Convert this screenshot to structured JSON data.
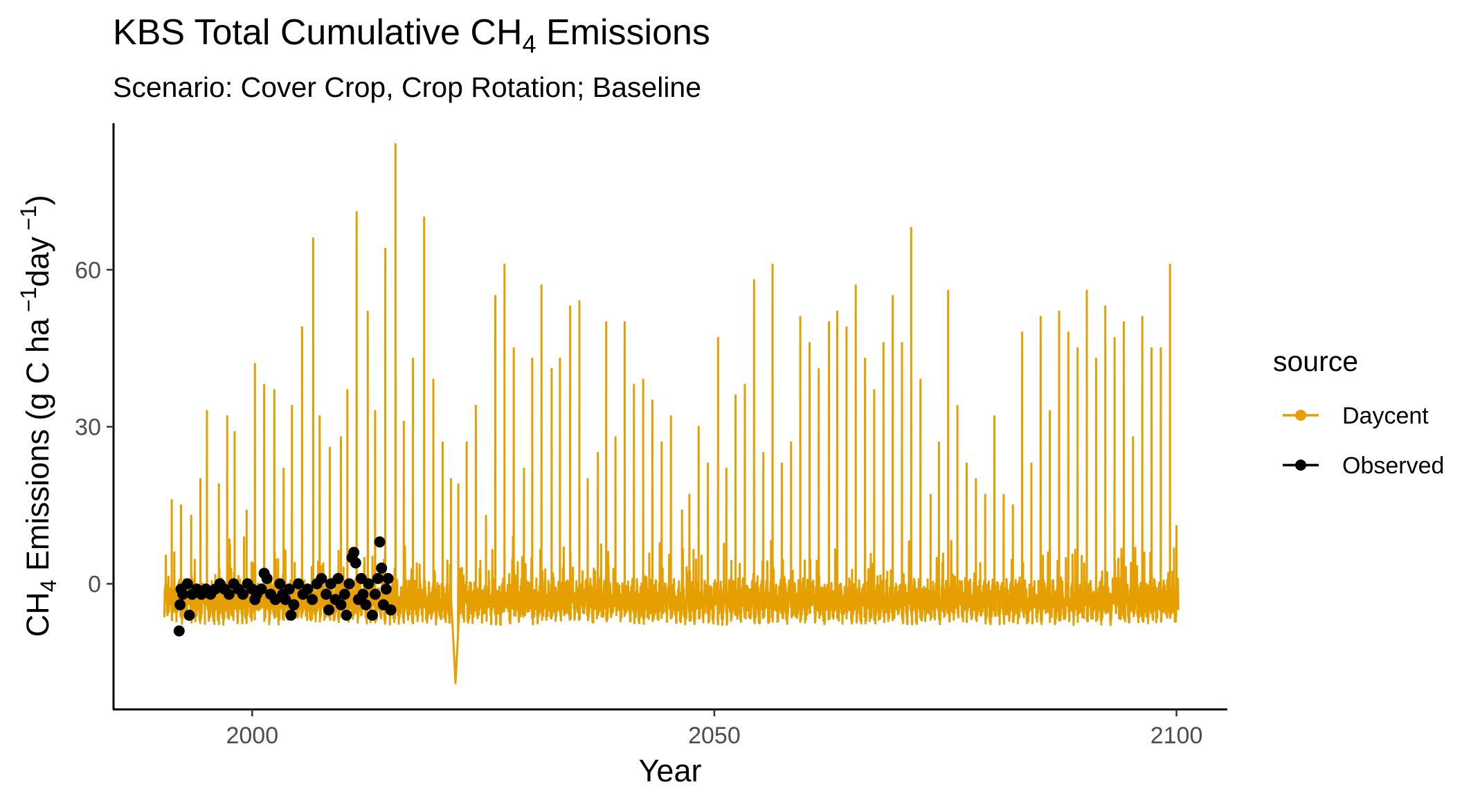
{
  "chart_data": {
    "type": "line",
    "title": {
      "main": "KBS Total Cumulative CH",
      "sub": "4",
      "tail": " Emissions"
    },
    "subtitle": "Scenario: Cover Crop, Crop Rotation; Baseline",
    "xlabel": "Year",
    "ylabel": {
      "p1": "CH",
      "sub": "4",
      "p2": " Emissions (g C ha",
      "sup1": " −1",
      "p3": "day",
      "sup2": " −1",
      "p4": ")"
    },
    "xlim": [
      1985,
      2105.5
    ],
    "ylim": [
      -24,
      88
    ],
    "x_ticks": [
      2000,
      2050,
      2100
    ],
    "y_ticks": [
      0,
      30,
      60
    ],
    "x_tick_labels": [
      "2000",
      "2050",
      "2100"
    ],
    "y_tick_labels": [
      "0",
      "30",
      "60"
    ],
    "grid": false,
    "legend_position": "right",
    "legend_title": "source",
    "legend_items": [
      "Daycent",
      "Observed"
    ],
    "colors": {
      "Daycent": "#E69F00",
      "Observed": "#000000"
    },
    "series": [
      {
        "name": "Daycent",
        "style": "line",
        "baseline": -2,
        "noise_range": [
          -8,
          3
        ],
        "x_range": [
          1990.5,
          2100.2
        ],
        "annual_peaks": [
          [
            1991.3,
            16
          ],
          [
            1992.3,
            15
          ],
          [
            1993.4,
            13
          ],
          [
            1994.4,
            20
          ],
          [
            1995.1,
            33
          ],
          [
            1996.4,
            19
          ],
          [
            1997.3,
            32
          ],
          [
            1998.1,
            29
          ],
          [
            1999.4,
            14
          ],
          [
            2000.3,
            42
          ],
          [
            2001.3,
            38
          ],
          [
            2002.4,
            37
          ],
          [
            2003.4,
            22
          ],
          [
            2004.3,
            34
          ],
          [
            2005.4,
            49
          ],
          [
            2006.6,
            66
          ],
          [
            2007.3,
            32
          ],
          [
            2008.4,
            26
          ],
          [
            2009.6,
            28
          ],
          [
            2010.3,
            37
          ],
          [
            2011.3,
            71
          ],
          [
            2012.5,
            52
          ],
          [
            2013.3,
            33
          ],
          [
            2014.4,
            64
          ],
          [
            2015.5,
            84
          ],
          [
            2016.4,
            31
          ],
          [
            2017.4,
            43
          ],
          [
            2018.6,
            70
          ],
          [
            2019.6,
            39
          ],
          [
            2020.6,
            27
          ],
          [
            2021.5,
            20
          ],
          [
            2022.3,
            19
          ],
          [
            2023.2,
            27
          ],
          [
            2024.2,
            34
          ],
          [
            2025.3,
            13
          ],
          [
            2026.3,
            55
          ],
          [
            2027.3,
            61
          ],
          [
            2028.3,
            45
          ],
          [
            2029.4,
            22
          ],
          [
            2030.3,
            43
          ],
          [
            2031.3,
            57
          ],
          [
            2032.4,
            41
          ],
          [
            2033.3,
            43
          ],
          [
            2034.4,
            53
          ],
          [
            2035.4,
            54
          ],
          [
            2036.3,
            20
          ],
          [
            2037.4,
            25
          ],
          [
            2038.3,
            50
          ],
          [
            2039.3,
            28
          ],
          [
            2040.3,
            50
          ],
          [
            2041.3,
            38
          ],
          [
            2042.3,
            39
          ],
          [
            2043.3,
            35
          ],
          [
            2044.3,
            27
          ],
          [
            2045.3,
            32
          ],
          [
            2046.5,
            14
          ],
          [
            2047.3,
            17
          ],
          [
            2048.3,
            30
          ],
          [
            2049.3,
            23
          ],
          [
            2050.4,
            47
          ],
          [
            2051.3,
            22
          ],
          [
            2052.3,
            36
          ],
          [
            2053.3,
            38
          ],
          [
            2054.3,
            58
          ],
          [
            2055.3,
            25
          ],
          [
            2056.3,
            61
          ],
          [
            2057.3,
            23
          ],
          [
            2058.3,
            27
          ],
          [
            2059.3,
            51
          ],
          [
            2060.3,
            46
          ],
          [
            2061.3,
            41
          ],
          [
            2062.4,
            50
          ],
          [
            2063.3,
            52
          ],
          [
            2064.3,
            49
          ],
          [
            2065.3,
            57
          ],
          [
            2066.3,
            43
          ],
          [
            2067.3,
            37
          ],
          [
            2068.3,
            46
          ],
          [
            2069.3,
            55
          ],
          [
            2070.3,
            46
          ],
          [
            2071.3,
            68
          ],
          [
            2072.3,
            39
          ],
          [
            2073.4,
            17
          ],
          [
            2074.3,
            27
          ],
          [
            2075.3,
            56
          ],
          [
            2076.3,
            34
          ],
          [
            2077.3,
            23
          ],
          [
            2078.3,
            20
          ],
          [
            2079.3,
            17
          ],
          [
            2080.3,
            32
          ],
          [
            2081.3,
            17
          ],
          [
            2082.3,
            15
          ],
          [
            2083.3,
            48
          ],
          [
            2084.3,
            23
          ],
          [
            2085.3,
            51
          ],
          [
            2086.3,
            33
          ],
          [
            2087.3,
            52
          ],
          [
            2088.3,
            48
          ],
          [
            2089.3,
            45
          ],
          [
            2090.3,
            56
          ],
          [
            2091.3,
            43
          ],
          [
            2092.3,
            53
          ],
          [
            2093.3,
            47
          ],
          [
            2094.3,
            50
          ],
          [
            2095.3,
            28
          ],
          [
            2096.3,
            51
          ],
          [
            2097.3,
            45
          ],
          [
            2098.3,
            45
          ],
          [
            2099.3,
            61
          ],
          [
            2100.0,
            11
          ]
        ],
        "dip": {
          "x": 2022.0,
          "y": -19
        }
      },
      {
        "name": "Observed",
        "style": "points",
        "x_range": [
          1992.0,
          2015.0
        ],
        "y_range": [
          -9,
          8
        ],
        "points": [
          [
            1992.1,
            -9
          ],
          [
            1992.2,
            -4
          ],
          [
            1992.3,
            -1
          ],
          [
            1992.5,
            -2
          ],
          [
            1993.0,
            0
          ],
          [
            1993.2,
            -6
          ],
          [
            1993.5,
            -2
          ],
          [
            1994.0,
            -1
          ],
          [
            1994.5,
            -2
          ],
          [
            1995.0,
            -1
          ],
          [
            1995.5,
            -2
          ],
          [
            1996.0,
            -1
          ],
          [
            1996.5,
            0
          ],
          [
            1997.0,
            -1
          ],
          [
            1997.5,
            -2
          ],
          [
            1998.0,
            0
          ],
          [
            1998.5,
            -1
          ],
          [
            1999.0,
            -2
          ],
          [
            1999.5,
            0
          ],
          [
            2000.0,
            -1
          ],
          [
            2000.3,
            -3
          ],
          [
            2000.5,
            -2
          ],
          [
            2001.0,
            -1
          ],
          [
            2001.3,
            2
          ],
          [
            2001.6,
            1
          ],
          [
            2002.0,
            -2
          ],
          [
            2002.5,
            -3
          ],
          [
            2003.0,
            0
          ],
          [
            2003.3,
            -2
          ],
          [
            2003.6,
            -3
          ],
          [
            2004.0,
            -1
          ],
          [
            2004.2,
            -6
          ],
          [
            2004.5,
            -4
          ],
          [
            2005.0,
            0
          ],
          [
            2005.5,
            -2
          ],
          [
            2006.0,
            -1
          ],
          [
            2006.5,
            -3
          ],
          [
            2007.0,
            0
          ],
          [
            2007.5,
            1
          ],
          [
            2008.0,
            -2
          ],
          [
            2008.3,
            -5
          ],
          [
            2008.5,
            0
          ],
          [
            2009.0,
            -3
          ],
          [
            2009.3,
            1
          ],
          [
            2009.6,
            -4
          ],
          [
            2010.0,
            -2
          ],
          [
            2010.2,
            -6
          ],
          [
            2010.5,
            0
          ],
          [
            2010.8,
            5
          ],
          [
            2011.0,
            6
          ],
          [
            2011.2,
            4
          ],
          [
            2011.5,
            -3
          ],
          [
            2011.8,
            1
          ],
          [
            2012.0,
            -2
          ],
          [
            2012.3,
            -4
          ],
          [
            2012.6,
            0
          ],
          [
            2013.0,
            -6
          ],
          [
            2013.3,
            -2
          ],
          [
            2013.6,
            1
          ],
          [
            2013.8,
            8
          ],
          [
            2014.0,
            3
          ],
          [
            2014.2,
            -4
          ],
          [
            2014.5,
            -1
          ],
          [
            2014.7,
            1
          ],
          [
            2015.0,
            -5
          ]
        ]
      }
    ]
  }
}
